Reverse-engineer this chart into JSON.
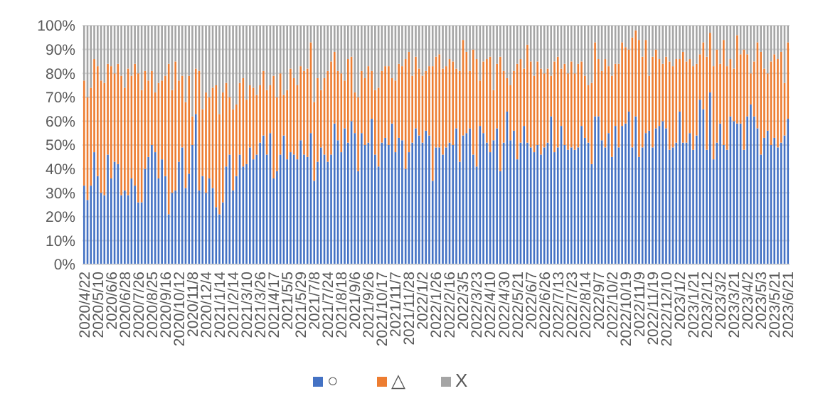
{
  "chart_data": {
    "type": "bar",
    "stacked": true,
    "categories": [
      "2020/4/22",
      null,
      null,
      null,
      "2020/5/10",
      null,
      null,
      null,
      "2020/6/6",
      null,
      null,
      null,
      "2020/6/28",
      null,
      null,
      null,
      "2020/7/26",
      null,
      null,
      null,
      "2020/8/25",
      null,
      null,
      null,
      "2020/9/16",
      null,
      null,
      null,
      "2020/10/12",
      null,
      null,
      null,
      "2020/11/8",
      null,
      null,
      null,
      "2020/12/4",
      null,
      null,
      null,
      "2021/1/14",
      null,
      null,
      null,
      "2021/2/14",
      null,
      null,
      null,
      "2021/3/10",
      null,
      null,
      null,
      "2021/3/26",
      null,
      null,
      null,
      "2021/4/17",
      null,
      null,
      null,
      "2021/5/5",
      null,
      null,
      null,
      "2021/5/29",
      null,
      null,
      null,
      "2021/7/8",
      null,
      null,
      null,
      "2021/7/24",
      null,
      null,
      null,
      "2021/8/18",
      null,
      null,
      null,
      "2021/9/6",
      null,
      null,
      null,
      "2021/9/26",
      null,
      null,
      null,
      "2021/10/17",
      null,
      null,
      null,
      "2021/11/7",
      null,
      null,
      null,
      "2021/11/28",
      null,
      null,
      null,
      "2022/1/2",
      null,
      null,
      null,
      "2022/1/26",
      null,
      null,
      null,
      "2022/2/16",
      null,
      null,
      null,
      "2022/3/5",
      null,
      null,
      null,
      "2022/3/23",
      null,
      null,
      null,
      "2022/4/10",
      null,
      null,
      null,
      "2022/4/30",
      null,
      null,
      null,
      "2022/5/21",
      null,
      null,
      null,
      "2022/6/7",
      null,
      null,
      null,
      "2022/6/26",
      null,
      null,
      null,
      "2022/7/13",
      null,
      null,
      null,
      "2022/7/23",
      null,
      null,
      null,
      "2022/8/14",
      null,
      null,
      null,
      "2022/9/7",
      null,
      null,
      null,
      "2022/10/2",
      null,
      null,
      null,
      "2022/10/19",
      null,
      null,
      null,
      "2022/11/9",
      null,
      null,
      null,
      "2022/11/19",
      null,
      null,
      null,
      "2022/12/10",
      null,
      null,
      null,
      "2023/1/2",
      null,
      null,
      null,
      "2023/1/21",
      null,
      null,
      null,
      "2023/2/12",
      null,
      null,
      null,
      "2023/3/2",
      null,
      null,
      null,
      "2023/3/21",
      null,
      null,
      null,
      "2023/4/2",
      null,
      null,
      null,
      "2023/5/3",
      null,
      null,
      null,
      "2023/5/21",
      null,
      null,
      null,
      "2023/6/21"
    ],
    "series": [
      {
        "name": "○",
        "color": "#4472c4",
        "values": [
          33,
          27,
          33,
          47,
          37,
          30,
          29,
          46,
          36,
          43,
          42,
          29,
          31,
          29,
          36,
          33,
          26,
          26,
          40,
          45,
          50,
          47,
          36,
          44,
          37,
          21,
          30,
          31,
          43,
          49,
          32,
          38,
          50,
          63,
          31,
          37,
          30,
          36,
          32,
          24,
          21,
          26,
          41,
          46,
          31,
          37,
          46,
          41,
          42,
          49,
          44,
          46,
          51,
          54,
          46,
          55,
          36,
          39,
          46,
          54,
          44,
          47,
          46,
          44,
          52,
          46,
          45,
          55,
          35,
          43,
          49,
          46,
          43,
          46,
          59,
          52,
          47,
          57,
          51,
          60,
          55,
          39,
          55,
          50,
          51,
          61,
          46,
          41,
          51,
          53,
          50,
          59,
          47,
          53,
          52,
          40,
          47,
          51,
          57,
          54,
          51,
          56,
          54,
          35,
          49,
          49,
          46,
          49,
          51,
          50,
          57,
          43,
          54,
          55,
          57,
          46,
          41,
          58,
          55,
          51,
          47,
          52,
          57,
          39,
          51,
          64,
          52,
          56,
          44,
          51,
          58,
          51,
          49,
          47,
          50,
          46,
          49,
          51,
          62,
          47,
          49,
          58,
          50,
          48,
          49,
          48,
          49,
          58,
          53,
          51,
          42,
          62,
          62,
          52,
          49,
          55,
          45,
          58,
          49,
          58,
          59,
          64,
          49,
          62,
          45,
          49,
          55,
          56,
          49,
          57,
          58,
          60,
          57,
          48,
          49,
          51,
          64,
          51,
          51,
          55,
          48,
          54,
          69,
          65,
          48,
          72,
          44,
          51,
          59,
          50,
          48,
          62,
          60,
          59,
          59,
          48,
          62,
          67,
          62,
          57,
          46,
          53,
          56,
          50,
          53,
          49,
          51,
          54,
          61
        ]
      },
      {
        "name": "△",
        "color": "#ed7d31",
        "values": [
          44,
          43,
          41,
          39,
          46,
          47,
          47,
          38,
          47,
          37,
          42,
          50,
          43,
          53,
          43,
          51,
          54,
          47,
          41,
          32,
          31,
          25,
          40,
          33,
          42,
          63,
          43,
          54,
          34,
          30,
          36,
          41,
          12,
          19,
          50,
          28,
          42,
          34,
          42,
          51,
          42,
          46,
          35,
          24,
          34,
          30,
          30,
          37,
          27,
          26,
          30,
          25,
          24,
          27,
          27,
          20,
          43,
          31,
          34,
          17,
          29,
          35,
          32,
          31,
          31,
          35,
          37,
          38,
          33,
          35,
          24,
          32,
          38,
          39,
          30,
          29,
          33,
          20,
          35,
          27,
          17,
          31,
          26,
          28,
          32,
          20,
          27,
          33,
          30,
          30,
          33,
          19,
          30,
          31,
          31,
          46,
          42,
          28,
          30,
          28,
          28,
          25,
          29,
          48,
          38,
          39,
          36,
          34,
          35,
          35,
          25,
          38,
          40,
          34,
          24,
          44,
          45,
          19,
          30,
          35,
          40,
          21,
          27,
          48,
          30,
          14,
          23,
          25,
          40,
          35,
          24,
          41,
          36,
          32,
          35,
          36,
          31,
          31,
          17,
          38,
          38,
          24,
          34,
          32,
          36,
          32,
          35,
          27,
          26,
          24,
          34,
          31,
          24,
          29,
          37,
          28,
          34,
          26,
          35,
          35,
          32,
          26,
          46,
          36,
          49,
          38,
          39,
          23,
          38,
          33,
          28,
          24,
          30,
          37,
          34,
          35,
          22,
          38,
          34,
          31,
          35,
          30,
          19,
          28,
          39,
          25,
          39,
          39,
          25,
          44,
          35,
          24,
          22,
          37,
          29,
          42,
          26,
          13,
          23,
          36,
          43,
          29,
          24,
          35,
          35,
          37,
          38,
          22,
          32
        ]
      },
      {
        "name": "X",
        "color": "#a5a5a5",
        "values": [
          23,
          30,
          26,
          14,
          17,
          23,
          24,
          16,
          17,
          20,
          16,
          21,
          26,
          18,
          21,
          16,
          20,
          27,
          19,
          23,
          19,
          28,
          24,
          23,
          21,
          16,
          27,
          15,
          23,
          21,
          32,
          21,
          38,
          18,
          19,
          35,
          28,
          30,
          26,
          25,
          37,
          28,
          24,
          30,
          35,
          33,
          24,
          22,
          31,
          25,
          26,
          29,
          25,
          19,
          27,
          25,
          21,
          30,
          20,
          29,
          27,
          18,
          22,
          25,
          17,
          19,
          18,
          7,
          32,
          22,
          27,
          22,
          19,
          15,
          11,
          19,
          20,
          23,
          14,
          13,
          28,
          30,
          19,
          22,
          17,
          19,
          27,
          26,
          19,
          17,
          17,
          22,
          23,
          16,
          17,
          14,
          11,
          21,
          13,
          18,
          21,
          19,
          17,
          17,
          13,
          12,
          18,
          17,
          14,
          15,
          18,
          19,
          6,
          11,
          19,
          10,
          14,
          23,
          15,
          14,
          13,
          27,
          16,
          13,
          19,
          22,
          25,
          19,
          16,
          14,
          18,
          8,
          15,
          21,
          15,
          18,
          20,
          18,
          21,
          15,
          13,
          18,
          16,
          20,
          15,
          20,
          16,
          15,
          21,
          25,
          24,
          7,
          14,
          19,
          14,
          17,
          21,
          16,
          16,
          7,
          9,
          10,
          5,
          2,
          6,
          13,
          6,
          21,
          13,
          10,
          14,
          16,
          13,
          15,
          17,
          14,
          14,
          11,
          15,
          14,
          17,
          16,
          12,
          7,
          13,
          3,
          17,
          10,
          16,
          6,
          17,
          14,
          18,
          4,
          12,
          10,
          12,
          20,
          15,
          7,
          11,
          18,
          20,
          15,
          12,
          14,
          11,
          24,
          7
        ]
      }
    ],
    "ylim": [
      0,
      100
    ],
    "yticks": [
      {
        "value": 0,
        "label": "0%"
      },
      {
        "value": 10,
        "label": "10%"
      },
      {
        "value": 20,
        "label": "20%"
      },
      {
        "value": 30,
        "label": "30%"
      },
      {
        "value": 40,
        "label": "40%"
      },
      {
        "value": 50,
        "label": "50%"
      },
      {
        "value": 60,
        "label": "60%"
      },
      {
        "value": 70,
        "label": "70%"
      },
      {
        "value": 80,
        "label": "80%"
      },
      {
        "value": 90,
        "label": "90%"
      },
      {
        "value": 100,
        "label": "100%"
      }
    ],
    "grid": "y",
    "legend": "bottom"
  }
}
